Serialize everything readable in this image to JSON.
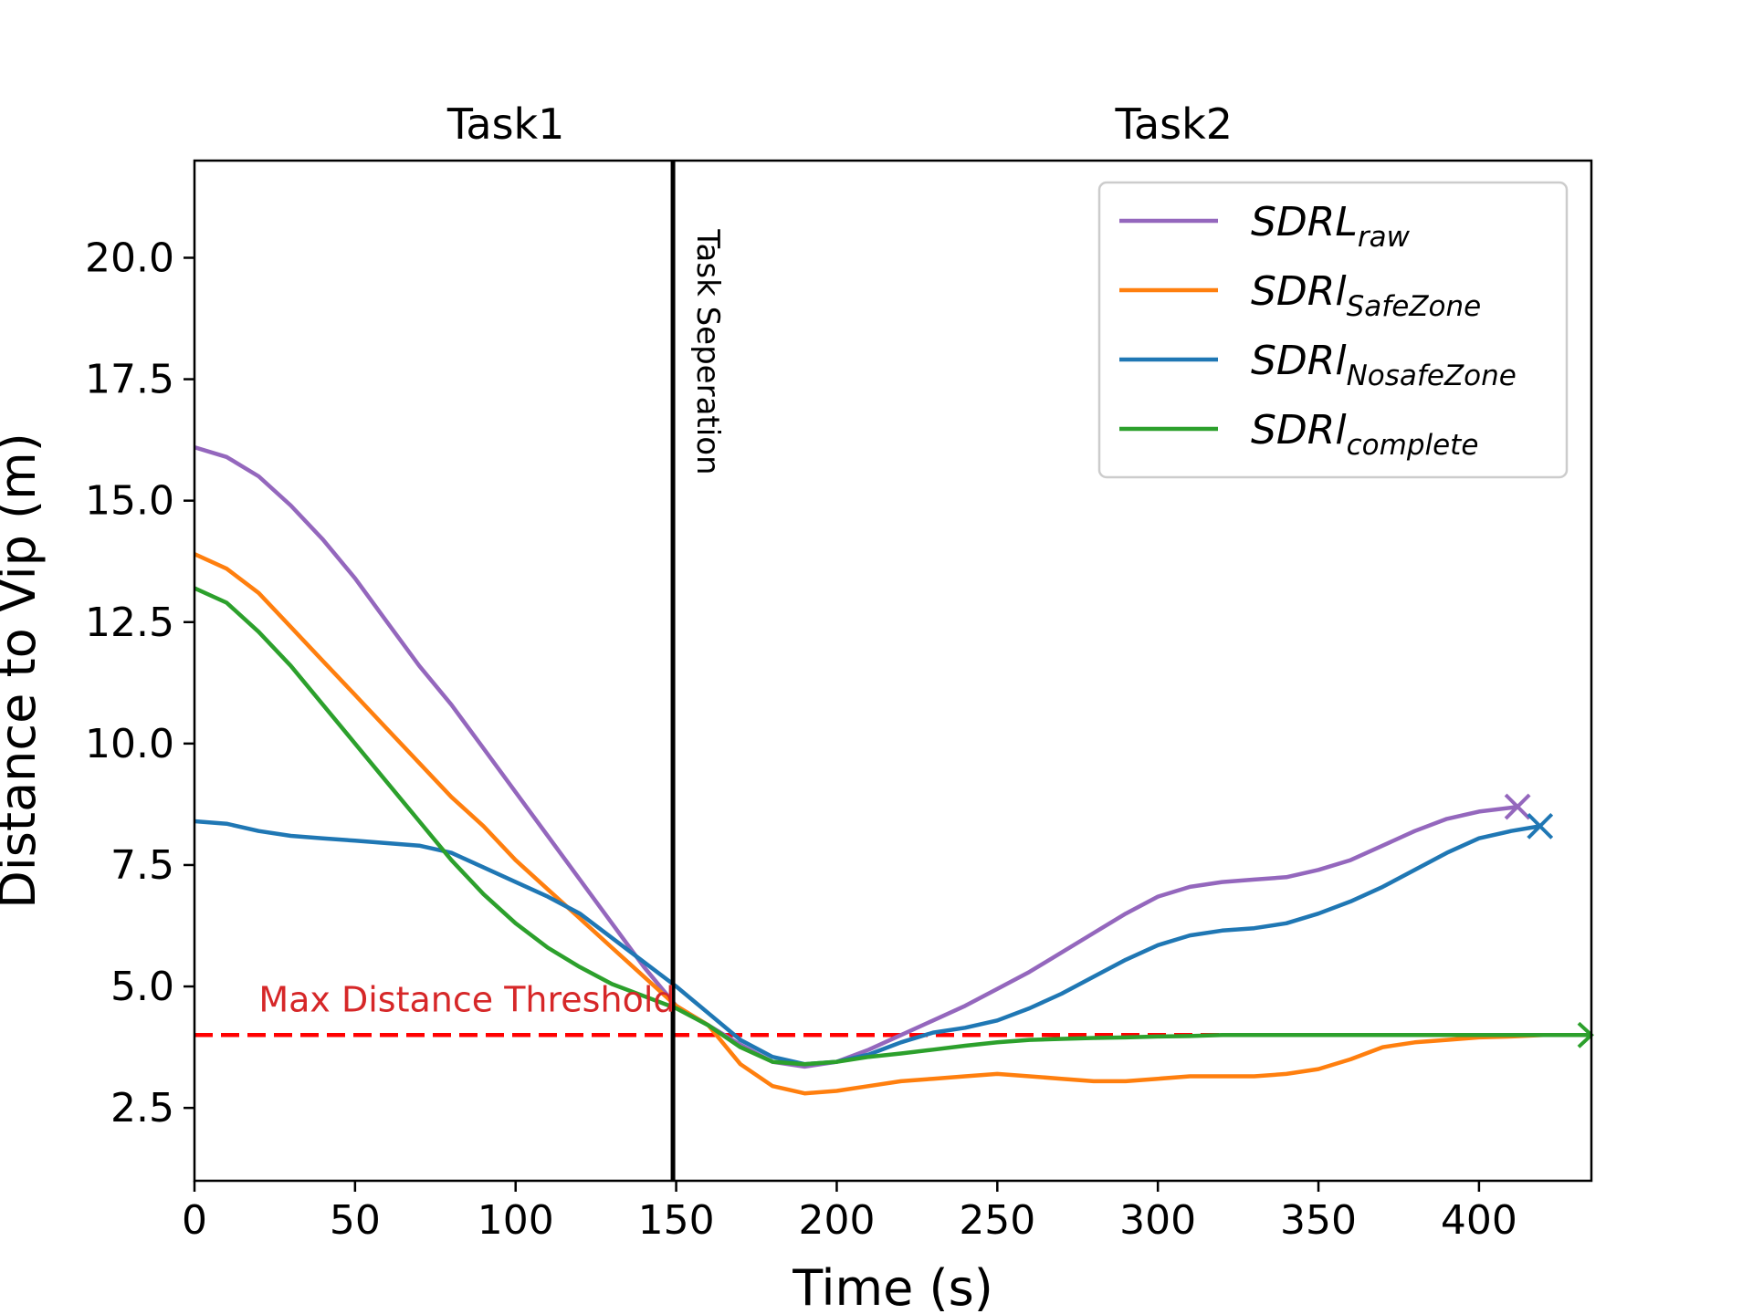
{
  "chart_data": {
    "type": "line",
    "xlabel": "Time (s)",
    "ylabel": "Distance to Vip (m)",
    "xlim": [
      0,
      435
    ],
    "ylim": [
      1.0,
      22.0
    ],
    "xticks": [
      0,
      50,
      100,
      150,
      200,
      250,
      300,
      350,
      400
    ],
    "yticks": [
      2.5,
      5.0,
      7.5,
      10.0,
      12.5,
      15.0,
      17.5,
      20.0
    ],
    "ytick_labels": [
      "2.5",
      "5.0",
      "7.5",
      "10.0",
      "12.5",
      "15.0",
      "17.5",
      "20.0"
    ],
    "task_labels": [
      {
        "text": "Task1",
        "x": 97
      },
      {
        "text": "Task2",
        "x": 305
      }
    ],
    "separator": {
      "x": 149,
      "label": "Task Seperation"
    },
    "threshold": {
      "y": 4.0,
      "label": "Max Distance Threshold",
      "color": "#ff0000",
      "label_color": "#d62728"
    },
    "series": [
      {
        "name": "SDRL",
        "sub": "raw",
        "color": "#9467bd",
        "end_marker": "x",
        "x": [
          0,
          10,
          20,
          30,
          40,
          50,
          60,
          70,
          80,
          90,
          100,
          110,
          120,
          130,
          140,
          150,
          160,
          170,
          180,
          190,
          200,
          210,
          220,
          230,
          240,
          250,
          260,
          270,
          280,
          290,
          300,
          310,
          320,
          330,
          340,
          350,
          360,
          370,
          380,
          390,
          400,
          410,
          412
        ],
        "y": [
          16.1,
          15.9,
          15.5,
          14.9,
          14.2,
          13.4,
          12.5,
          11.6,
          10.8,
          9.9,
          9.0,
          8.1,
          7.2,
          6.3,
          5.4,
          4.6,
          4.2,
          3.8,
          3.45,
          3.35,
          3.45,
          3.7,
          4.0,
          4.3,
          4.6,
          4.95,
          5.3,
          5.7,
          6.1,
          6.5,
          6.85,
          7.05,
          7.15,
          7.2,
          7.25,
          7.4,
          7.6,
          7.9,
          8.2,
          8.45,
          8.6,
          8.68,
          8.7
        ]
      },
      {
        "name": "SDRl",
        "sub": "SafeZone",
        "color": "#ff7f0e",
        "end_marker": "none",
        "x": [
          0,
          10,
          20,
          30,
          40,
          50,
          60,
          70,
          80,
          90,
          100,
          110,
          120,
          130,
          140,
          150,
          160,
          170,
          180,
          190,
          200,
          210,
          220,
          230,
          240,
          250,
          260,
          270,
          280,
          290,
          300,
          310,
          320,
          330,
          340,
          350,
          360,
          370,
          380,
          390,
          400,
          410,
          420,
          435
        ],
        "y": [
          13.9,
          13.6,
          13.1,
          12.4,
          11.7,
          11.0,
          10.3,
          9.6,
          8.9,
          8.3,
          7.6,
          7.0,
          6.4,
          5.8,
          5.2,
          4.6,
          4.2,
          3.4,
          2.95,
          2.8,
          2.85,
          2.95,
          3.05,
          3.1,
          3.15,
          3.2,
          3.15,
          3.1,
          3.05,
          3.05,
          3.1,
          3.15,
          3.15,
          3.15,
          3.2,
          3.3,
          3.5,
          3.75,
          3.85,
          3.9,
          3.95,
          3.97,
          4.0,
          4.0
        ]
      },
      {
        "name": "SDRl",
        "sub": "NosafeZone",
        "color": "#1f77b4",
        "end_marker": "x",
        "x": [
          0,
          10,
          20,
          30,
          40,
          50,
          60,
          70,
          80,
          90,
          100,
          110,
          120,
          130,
          140,
          150,
          160,
          170,
          180,
          190,
          200,
          210,
          220,
          230,
          240,
          250,
          260,
          270,
          280,
          290,
          300,
          310,
          320,
          330,
          340,
          350,
          360,
          370,
          380,
          390,
          400,
          410,
          419
        ],
        "y": [
          8.4,
          8.35,
          8.2,
          8.1,
          8.05,
          8.0,
          7.95,
          7.9,
          7.75,
          7.45,
          7.15,
          6.85,
          6.5,
          6.0,
          5.5,
          5.0,
          4.45,
          3.9,
          3.55,
          3.4,
          3.45,
          3.6,
          3.85,
          4.05,
          4.15,
          4.3,
          4.55,
          4.85,
          5.2,
          5.55,
          5.85,
          6.05,
          6.15,
          6.2,
          6.3,
          6.5,
          6.75,
          7.05,
          7.4,
          7.75,
          8.05,
          8.2,
          8.3
        ]
      },
      {
        "name": "SDRl",
        "sub": "complete",
        "color": "#2ca02c",
        "end_marker": "arrow",
        "x": [
          0,
          10,
          20,
          30,
          40,
          50,
          60,
          70,
          80,
          90,
          100,
          110,
          120,
          130,
          140,
          150,
          160,
          170,
          180,
          190,
          200,
          210,
          220,
          230,
          240,
          250,
          260,
          270,
          280,
          290,
          300,
          310,
          320,
          330,
          340,
          350,
          360,
          370,
          380,
          390,
          400,
          410,
          420,
          435
        ],
        "y": [
          13.2,
          12.9,
          12.3,
          11.6,
          10.8,
          10.0,
          9.2,
          8.4,
          7.6,
          6.9,
          6.3,
          5.8,
          5.4,
          5.05,
          4.8,
          4.55,
          4.2,
          3.75,
          3.45,
          3.4,
          3.45,
          3.55,
          3.62,
          3.7,
          3.78,
          3.85,
          3.9,
          3.92,
          3.94,
          3.95,
          3.97,
          3.98,
          4.0,
          4.0,
          4.0,
          4.0,
          4.0,
          4.0,
          4.0,
          4.0,
          4.0,
          4.0,
          4.0,
          4.0
        ]
      }
    ]
  }
}
